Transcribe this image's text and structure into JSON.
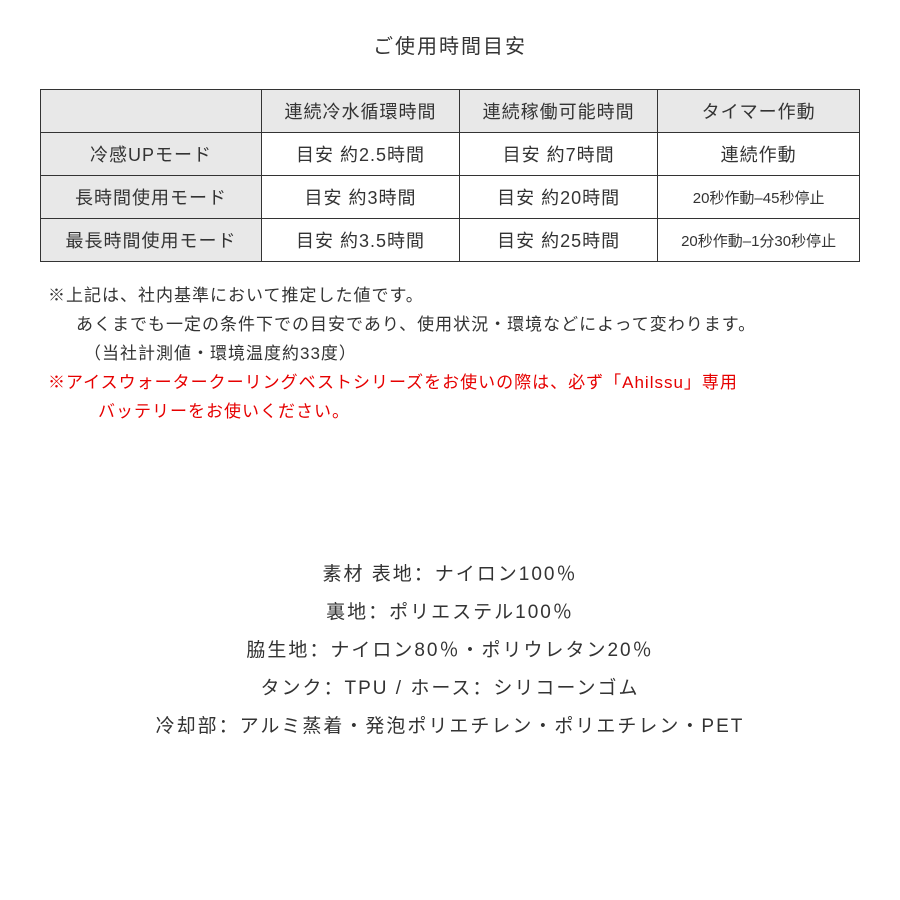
{
  "title": "ご使用時間目安",
  "table": {
    "columns": [
      "",
      "連続冷水循環時間",
      "連続稼働可能時間",
      "タイマー作動"
    ],
    "rows": [
      {
        "mode": "冷感UPモード",
        "circulation": "目安 約2.5時間",
        "operation": "目安 約7時間",
        "timer": "連続作動",
        "timer_small": false
      },
      {
        "mode": "長時間使用モード",
        "circulation": "目安 約3時間",
        "operation": "目安 約20時間",
        "timer": "20秒作動–45秒停止",
        "timer_small": true
      },
      {
        "mode": "最長時間使用モード",
        "circulation": "目安 約3.5時間",
        "operation": "目安 約25時間",
        "timer": "20秒作動–1分30秒停止",
        "timer_small": true
      }
    ],
    "header_bg": "#e8e8e8",
    "border_color": "#333333",
    "text_color": "#333333"
  },
  "notes": {
    "line1": "※上記は、社内基準において推定した値です。",
    "line2": "あくまでも一定の条件下での目安であり、使用状況・環境などによって変わります。",
    "line3": "（当社計測値・環境温度約33度）",
    "warning1": "※アイスウォータークーリングベストシリーズをお使いの際は、必ず「Ahilssu」専用",
    "warning2": "バッテリーをお使いください。",
    "warning_color": "#e60000"
  },
  "materials": {
    "line1": "素材  表地：ナイロン100％",
    "line2": "裏地：ポリエステル100％",
    "line3": "脇生地：ナイロン80％・ポリウレタン20％",
    "line4": "タンク：TPU / ホース：シリコーンゴム",
    "line5": "冷却部：アルミ蒸着・発泡ポリエチレン・ポリエチレン・PET"
  }
}
